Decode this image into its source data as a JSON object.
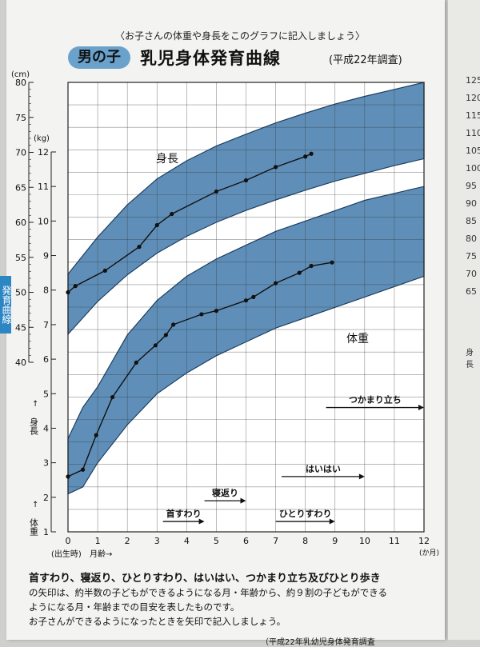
{
  "instruction": "〈お子さんの体重や身長をこのグラフに記入しましょう〉",
  "header": {
    "badge": "男の子",
    "title": "乳児身体発育曲線",
    "subtitle": "(平成22年調査)"
  },
  "side_tab": "発育曲線",
  "chart_data": {
    "type": "line",
    "title": "乳児身体発育曲線",
    "x_unit": "(か月)",
    "x_label_origin": "(出生時)",
    "x_label": "月齢→",
    "xlim": [
      0,
      12
    ],
    "x_ticks": [
      "0",
      "1",
      "2",
      "3",
      "4",
      "5",
      "6",
      "7",
      "8",
      "9",
      "10",
      "11",
      "12"
    ],
    "height_axis": {
      "unit": "(cm)",
      "label": "身長",
      "ylim": [
        40,
        80
      ],
      "ticks": [
        "40",
        "45",
        "50",
        "55",
        "60",
        "65",
        "70",
        "75",
        "80"
      ]
    },
    "weight_axis": {
      "unit": "(kg)",
      "label": "体重",
      "ylim": [
        1,
        12
      ],
      "ticks": [
        "1",
        "2",
        "3",
        "4",
        "5",
        "6",
        "7",
        "8",
        "9",
        "10",
        "11",
        "12"
      ]
    },
    "height_band": {
      "label": "身長",
      "x": [
        0,
        1,
        2,
        3,
        4,
        5,
        6,
        7,
        8,
        9,
        10,
        11,
        12
      ],
      "lower": [
        44.0,
        48.7,
        52.5,
        55.6,
        58.0,
        60.0,
        61.7,
        63.2,
        64.6,
        65.9,
        67.0,
        68.1,
        69.1
      ],
      "upper": [
        52.6,
        57.9,
        62.5,
        66.2,
        68.8,
        70.9,
        72.6,
        74.2,
        75.6,
        76.9,
        78.0,
        79.0,
        80.0
      ]
    },
    "weight_band": {
      "label": "体重",
      "x": [
        0,
        0.5,
        1,
        2,
        3,
        4,
        5,
        6,
        7,
        8,
        9,
        10,
        11,
        12
      ],
      "lower": [
        2.1,
        2.3,
        3.0,
        4.1,
        5.0,
        5.6,
        6.1,
        6.5,
        6.9,
        7.2,
        7.5,
        7.8,
        8.1,
        8.4
      ],
      "upper": [
        3.7,
        4.6,
        5.2,
        6.7,
        7.7,
        8.4,
        8.9,
        9.3,
        9.7,
        10.0,
        10.3,
        10.6,
        10.8,
        11.0
      ]
    },
    "series": [
      {
        "x": [
          0,
          0.25,
          1.25,
          2.4,
          3.0,
          3.5,
          5.0,
          6.0,
          7.0,
          8.0,
          8.2
        ],
        "y": [
          50.0,
          50.9,
          53.1,
          56.5,
          59.6,
          61.2,
          64.4,
          66.0,
          67.9,
          69.4,
          69.8
        ],
        "axis": "height"
      },
      {
        "x": [
          0,
          0.5,
          0.95,
          1.5,
          2.3,
          2.95,
          3.3,
          3.55,
          4.5,
          5.0,
          6.0,
          6.25,
          7.0,
          7.8,
          8.2,
          8.9
        ],
        "y": [
          2.6,
          2.8,
          3.8,
          4.9,
          5.9,
          6.4,
          6.7,
          7.0,
          7.3,
          7.4,
          7.7,
          7.8,
          8.2,
          8.5,
          8.7,
          8.8
        ],
        "axis": "weight"
      }
    ],
    "milestones": [
      {
        "label": "首すわり",
        "from": 3.2,
        "to": 4.6,
        "weight_level": 1.3
      },
      {
        "label": "寝返り",
        "from": 4.6,
        "to": 6.0,
        "weight_level": 1.9
      },
      {
        "label": "ひとりすわり",
        "from": 7.0,
        "to": 9.0,
        "weight_level": 1.3
      },
      {
        "label": "はいはい",
        "from": 7.2,
        "to": 10.0,
        "weight_level": 2.6
      },
      {
        "label": "つかまり立ち",
        "from": 8.7,
        "to": 12.0,
        "weight_level": 4.6
      }
    ]
  },
  "footer": {
    "bold": "首すわり、寝返り、ひとりすわり、はいはい、つかまり立ち及びひとり歩き",
    "line1": "の矢印は、約半数の子どもができるようになる月・年齢から、約９割の子どもができる",
    "line2": "ようになる月・年齢までの目安を表したものです。",
    "line3": "お子さんができるようになったときを矢印で記入しましょう。",
    "cut": "（平成22年乳幼児身体発育調査"
  },
  "next_page": {
    "ticks": [
      "125",
      "120",
      "115",
      "110",
      "105",
      "100",
      "95",
      "90",
      "85",
      "80",
      "75",
      "70",
      "65"
    ],
    "label": "身長"
  }
}
